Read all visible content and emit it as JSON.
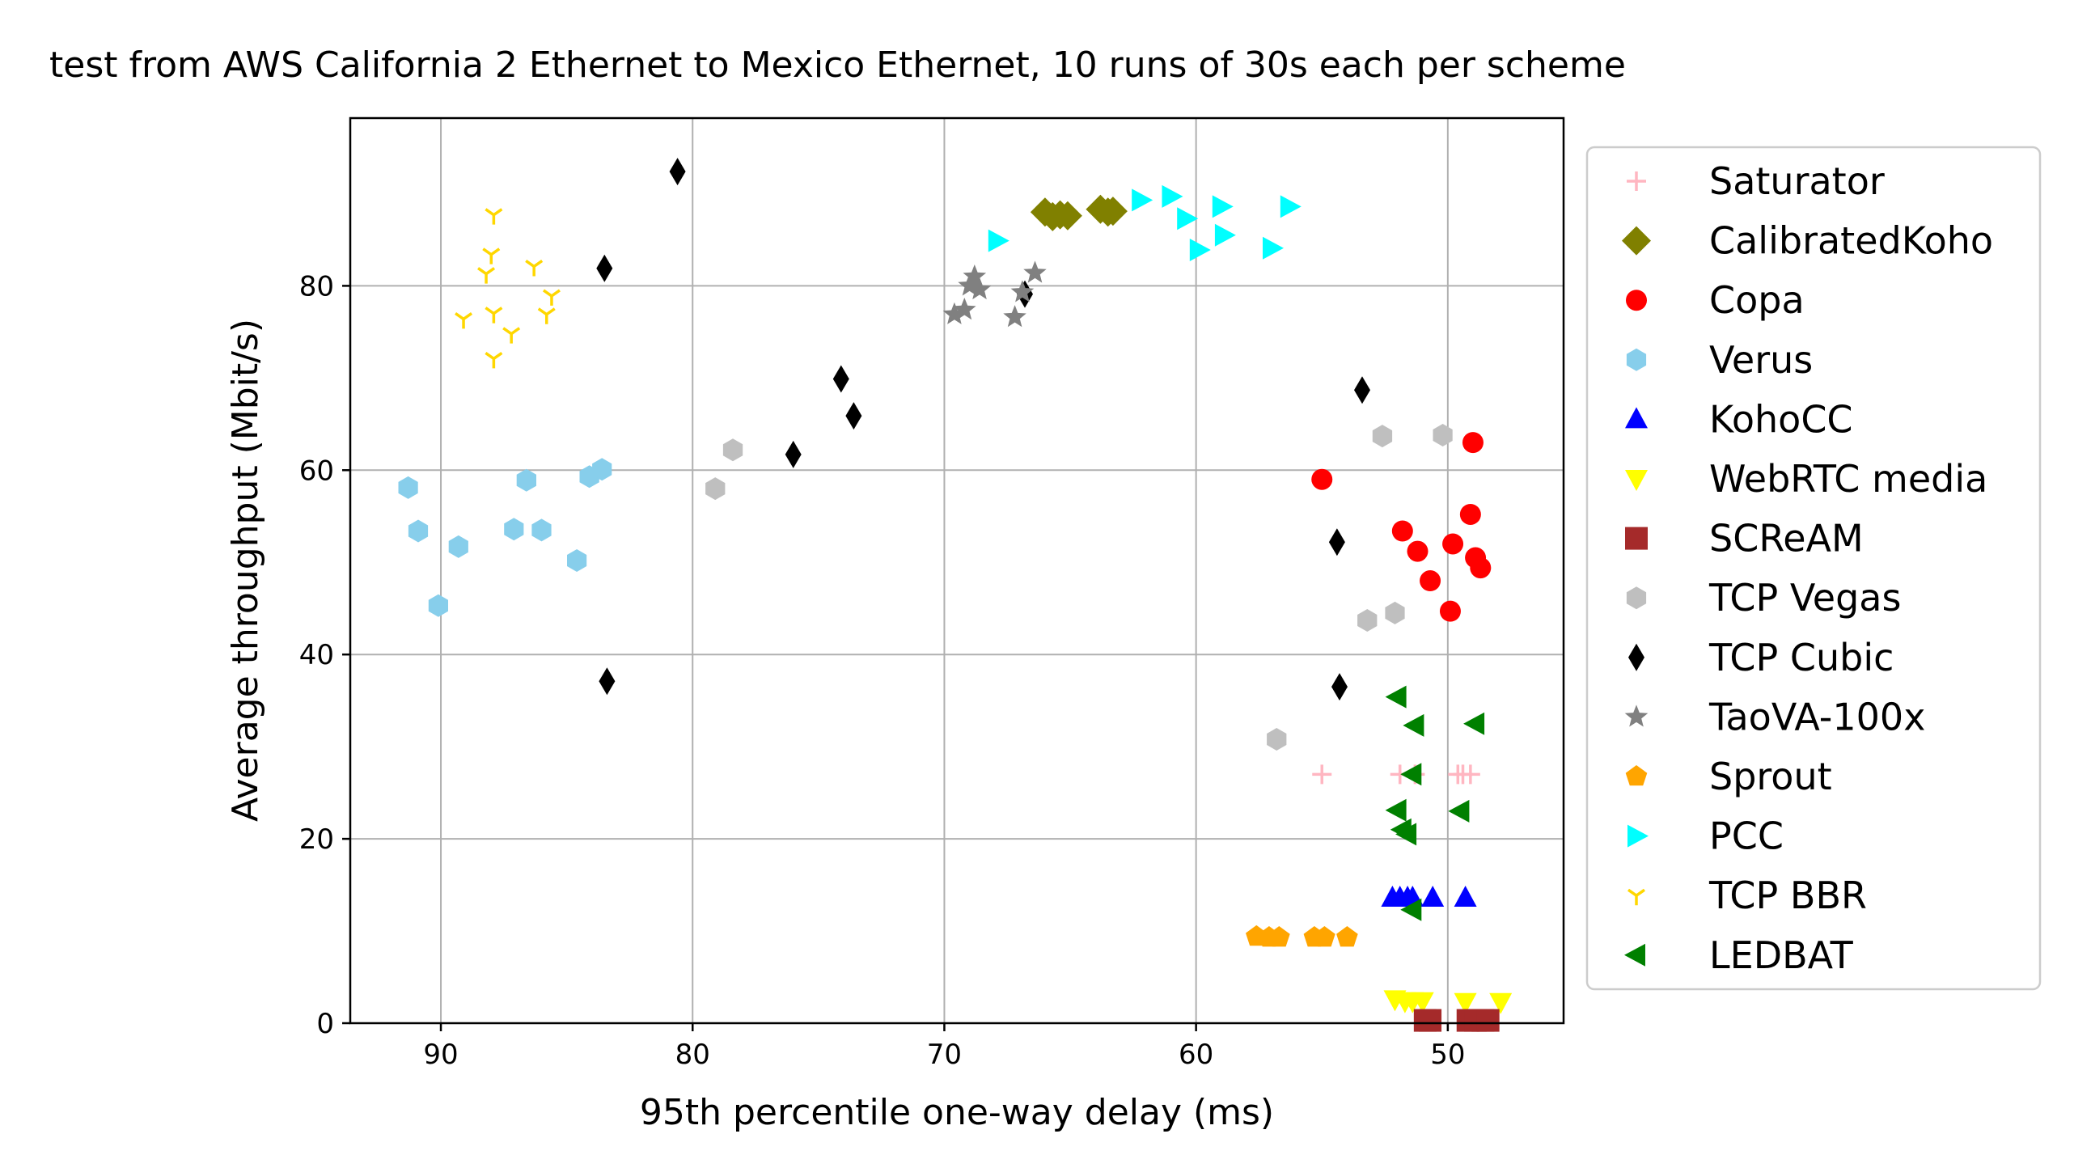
{
  "chart_data": {
    "type": "scatter",
    "title": "test from AWS California 2 Ethernet to Mexico Ethernet, 10 runs of 30s each per scheme",
    "xlabel": "95th percentile one-way delay (ms)",
    "ylabel": "Average throughput (Mbit/s)",
    "xlim": [
      93.6,
      45.4
    ],
    "ylim": [
      0,
      98.2
    ],
    "x_inverted": true,
    "x_ticks": [
      90,
      80,
      70,
      60,
      50
    ],
    "y_ticks": [
      0,
      20,
      40,
      60,
      80
    ],
    "x_tick_labels": [
      "90",
      "80",
      "70",
      "60",
      "50"
    ],
    "y_tick_labels": [
      "0",
      "20",
      "40",
      "60",
      "80"
    ],
    "grid": true,
    "legend_position": "right, outside plot",
    "series": [
      {
        "name": "Saturator",
        "marker": "plus",
        "color": "#ffb6c1",
        "points": [
          [
            55.0,
            27
          ],
          [
            51.9,
            27
          ],
          [
            51.3,
            27
          ],
          [
            49.6,
            27
          ],
          [
            49.1,
            27
          ],
          [
            49.4,
            27
          ]
        ]
      },
      {
        "name": "CalibratedKoho",
        "marker": "diamond",
        "color": "#808000",
        "points": [
          [
            66.0,
            88.0
          ],
          [
            65.7,
            87.5
          ],
          [
            65.4,
            87.7
          ],
          [
            65.1,
            87.6
          ],
          [
            63.8,
            88.3
          ],
          [
            63.5,
            88.0
          ],
          [
            63.3,
            88.1
          ]
        ]
      },
      {
        "name": "Copa",
        "marker": "circle",
        "color": "#ff0000",
        "points": [
          [
            55.0,
            59
          ],
          [
            49.0,
            63
          ],
          [
            51.8,
            53.4
          ],
          [
            51.2,
            51.2
          ],
          [
            49.1,
            55.2
          ],
          [
            49.8,
            52
          ],
          [
            48.9,
            50.5
          ],
          [
            50.7,
            48
          ],
          [
            48.7,
            49.4
          ],
          [
            49.9,
            44.7
          ]
        ]
      },
      {
        "name": "Verus",
        "marker": "hexagon",
        "color": "#87ceeb",
        "points": [
          [
            91.3,
            58.1
          ],
          [
            90.9,
            53.4
          ],
          [
            89.3,
            51.7
          ],
          [
            90.1,
            45.3
          ],
          [
            86.6,
            58.9
          ],
          [
            87.1,
            53.6
          ],
          [
            86.0,
            53.5
          ],
          [
            84.1,
            59.3
          ],
          [
            83.6,
            60.1
          ],
          [
            84.6,
            50.2
          ]
        ]
      },
      {
        "name": "KohoCC",
        "marker": "triangle-up",
        "color": "#0000ff",
        "points": [
          [
            52.2,
            13.6
          ],
          [
            51.9,
            13.6
          ],
          [
            51.6,
            13.6
          ],
          [
            51.4,
            13.6
          ],
          [
            50.6,
            13.6
          ],
          [
            49.3,
            13.6
          ]
        ]
      },
      {
        "name": "WebRTC media",
        "marker": "triangle-down",
        "color": "#ffff00",
        "points": [
          [
            52.1,
            2.6
          ],
          [
            51.7,
            2.4
          ],
          [
            51.4,
            2.4
          ],
          [
            51.0,
            2.4
          ],
          [
            49.3,
            2.3
          ],
          [
            47.9,
            2.3
          ]
        ]
      },
      {
        "name": "SCReAM",
        "marker": "square",
        "color": "#a52a2a",
        "points": [
          [
            50.9,
            0.3
          ],
          [
            50.7,
            0.3
          ],
          [
            49.2,
            0.3
          ],
          [
            48.9,
            0.3
          ],
          [
            48.6,
            0.3
          ],
          [
            48.4,
            0.3
          ]
        ]
      },
      {
        "name": "TCP Vegas",
        "marker": "hexagon",
        "color": "#bfbfbf",
        "points": [
          [
            78.4,
            62.2
          ],
          [
            79.1,
            58.0
          ],
          [
            56.8,
            30.8
          ],
          [
            53.2,
            43.7
          ],
          [
            52.1,
            44.5
          ],
          [
            52.6,
            63.7
          ],
          [
            50.2,
            63.8
          ]
        ]
      },
      {
        "name": "TCP Cubic",
        "marker": "thin-diamond",
        "color": "#000000",
        "points": [
          [
            80.6,
            92.4
          ],
          [
            83.5,
            81.9
          ],
          [
            83.4,
            37.1
          ],
          [
            76.0,
            61.7
          ],
          [
            74.1,
            69.9
          ],
          [
            73.6,
            65.9
          ],
          [
            66.8,
            79.1
          ],
          [
            53.4,
            68.7
          ],
          [
            54.4,
            52.2
          ],
          [
            54.3,
            36.5
          ]
        ]
      },
      {
        "name": "TaoVA-100x",
        "marker": "star",
        "color": "#808080",
        "points": [
          [
            69.6,
            76.9
          ],
          [
            69.2,
            77.4
          ],
          [
            69.0,
            80.0
          ],
          [
            68.8,
            81.0
          ],
          [
            67.2,
            76.6
          ],
          [
            66.9,
            79.3
          ],
          [
            66.4,
            81.4
          ],
          [
            68.6,
            79.6
          ]
        ]
      },
      {
        "name": "Sprout",
        "marker": "pentagon",
        "color": "#ffa500",
        "points": [
          [
            57.6,
            9.4
          ],
          [
            57.1,
            9.3
          ],
          [
            56.7,
            9.3
          ],
          [
            55.3,
            9.3
          ],
          [
            54.9,
            9.3
          ],
          [
            54.0,
            9.3
          ]
        ]
      },
      {
        "name": "PCC",
        "marker": "triangle-right",
        "color": "#00ffff",
        "points": [
          [
            67.9,
            84.9
          ],
          [
            62.2,
            89.3
          ],
          [
            61.0,
            89.7
          ],
          [
            59.0,
            88.6
          ],
          [
            56.3,
            88.6
          ],
          [
            60.4,
            87.3
          ],
          [
            58.9,
            85.5
          ],
          [
            59.9,
            83.9
          ],
          [
            57.0,
            84.1
          ]
        ]
      },
      {
        "name": "TCP BBR",
        "marker": "tri-down",
        "color": "#ffd700",
        "points": [
          [
            87.9,
            87.7
          ],
          [
            88.0,
            83.4
          ],
          [
            88.2,
            81.3
          ],
          [
            86.3,
            82.1
          ],
          [
            85.6,
            78.9
          ],
          [
            87.9,
            77.0
          ],
          [
            89.1,
            76.4
          ],
          [
            87.2,
            74.8
          ],
          [
            85.8,
            76.9
          ],
          [
            87.9,
            72.1
          ]
        ]
      },
      {
        "name": "LEDBAT",
        "marker": "triangle-left",
        "color": "#008000",
        "points": [
          [
            52.0,
            35.4
          ],
          [
            51.3,
            32.3
          ],
          [
            48.9,
            32.5
          ],
          [
            51.4,
            27.0
          ],
          [
            52.0,
            23.1
          ],
          [
            49.5,
            23.0
          ],
          [
            51.8,
            21.0
          ],
          [
            51.6,
            20.5
          ],
          [
            51.4,
            12.3
          ]
        ]
      }
    ]
  }
}
